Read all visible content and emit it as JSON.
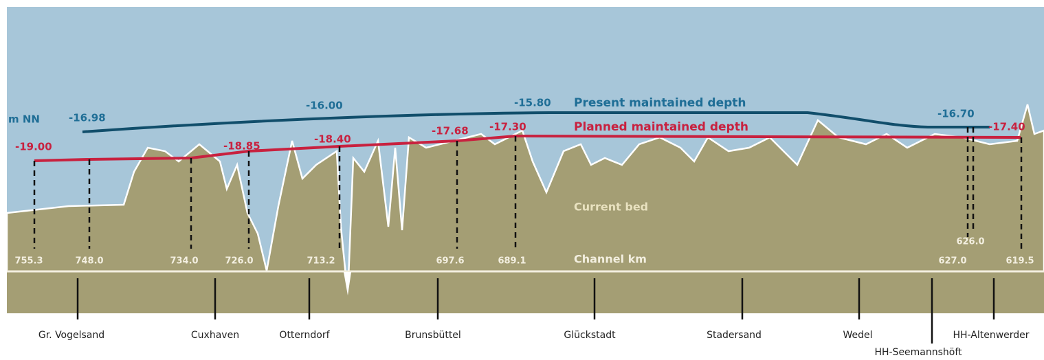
{
  "axis_label": "m NN",
  "present": {
    "label": "Present maintained depth",
    "depths": [
      "-16.98",
      "-16.00",
      "-15.80",
      "-16.70"
    ]
  },
  "planned": {
    "label": "Planned maintained depth",
    "depths": [
      "-19.00",
      "-18.85",
      "-18.40",
      "-17.68",
      "-17.30",
      "-17.40"
    ]
  },
  "bed_label": "Current bed",
  "channel_label": "Channel km",
  "channel_km": [
    "755.3",
    "748.0",
    "734.0",
    "726.0",
    "713.2",
    "697.6",
    "689.1",
    "627.0",
    "626.0",
    "619.5"
  ],
  "places": [
    "Gr. Vogelsand",
    "Cuxhaven",
    "Otterndorf",
    "Brunsbüttel",
    "Glückstadt",
    "Stadersand",
    "Wedel",
    "HH-Seemannshöft",
    "HH-Altenwerder"
  ]
}
